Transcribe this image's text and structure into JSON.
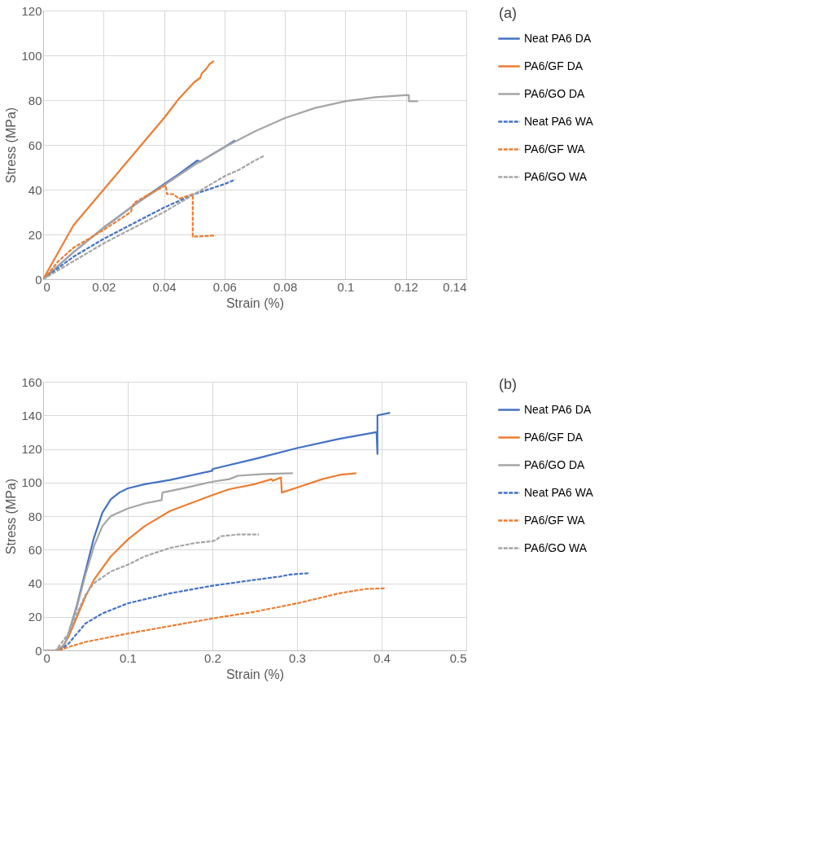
{
  "chart_data": [
    {
      "type": "line",
      "annotations": [
        "(a)"
      ],
      "xlabel": "Strain (%)",
      "ylabel": "Stress (MPa)",
      "xlim": [
        0,
        0.14
      ],
      "ylim": [
        0,
        120
      ],
      "xticks": [
        0,
        0.02,
        0.04,
        0.06,
        0.08,
        0.1,
        0.12,
        0.14
      ],
      "yticks": [
        0,
        20,
        40,
        60,
        80,
        100,
        120
      ],
      "grid": true,
      "legend": "right",
      "series": [
        {
          "name": "Neat PA6 DA",
          "color": "#4472c4",
          "line_style": "solid",
          "x": [
            0,
            0.01,
            0.02,
            0.03,
            0.04,
            0.045,
            0.05,
            0.051,
            0.052,
            0.055,
            0.06,
            0.0635
          ],
          "values": [
            0,
            12,
            23,
            33,
            42.5,
            47,
            52,
            53,
            52.5,
            55,
            59,
            62
          ]
        },
        {
          "name": "PA6/GF DA",
          "color": "#ed7d31",
          "line_style": "solid",
          "x": [
            0,
            0.005,
            0.01,
            0.015,
            0.02,
            0.03,
            0.04,
            0.044,
            0.0445,
            0.05,
            0.052,
            0.0525,
            0.054,
            0.055,
            0.0565
          ],
          "values": [
            0,
            12,
            24,
            32,
            40,
            56,
            72,
            79,
            80,
            88,
            90,
            92,
            94,
            96,
            97.5
          ]
        },
        {
          "name": "PA6/GO DA",
          "color": "#a5a5a5",
          "line_style": "solid",
          "x": [
            0,
            0.01,
            0.02,
            0.03,
            0.04,
            0.05,
            0.06,
            0.07,
            0.08,
            0.09,
            0.1,
            0.11,
            0.12,
            0.121,
            0.121,
            0.124
          ],
          "values": [
            0,
            12,
            23,
            33,
            42,
            51,
            59,
            66,
            72,
            76.5,
            79.5,
            81.3,
            82.2,
            82.2,
            79.5,
            79.5
          ]
        },
        {
          "name": "Neat PA6 WA",
          "color": "#4472c4",
          "line_style": "dashed",
          "x": [
            0,
            0.01,
            0.02,
            0.03,
            0.04,
            0.05,
            0.06,
            0.0635
          ],
          "values": [
            0,
            10,
            18,
            25,
            32,
            38,
            42.5,
            44.5
          ]
        },
        {
          "name": "PA6/GF WA",
          "color": "#ed7d31",
          "line_style": "dashed",
          "x": [
            0,
            0.002,
            0.005,
            0.01,
            0.02,
            0.029,
            0.03,
            0.035,
            0.04,
            0.0405,
            0.041,
            0.043,
            0.045,
            0.0495,
            0.0495,
            0.057
          ],
          "values": [
            0,
            3,
            8,
            14,
            22,
            30,
            34,
            38,
            41.5,
            42,
            38,
            38,
            36,
            38,
            19,
            19.5
          ]
        },
        {
          "name": "PA6/GO WA",
          "color": "#a5a5a5",
          "line_style": "dashed",
          "x": [
            0,
            0.01,
            0.02,
            0.03,
            0.04,
            0.05,
            0.06,
            0.065,
            0.07,
            0.073
          ],
          "values": [
            0,
            8,
            16,
            23,
            30,
            38,
            46,
            49,
            53,
            55
          ]
        }
      ]
    },
    {
      "type": "line",
      "annotations": [
        "(b)"
      ],
      "xlabel": "Strain (%)",
      "ylabel": "Stress (MPa)",
      "xlim": [
        0,
        0.5
      ],
      "ylim": [
        0,
        160
      ],
      "xticks": [
        0,
        0.1,
        0.2,
        0.3,
        0.4,
        0.5
      ],
      "yticks": [
        0,
        20,
        40,
        60,
        80,
        100,
        120,
        140,
        160
      ],
      "grid": true,
      "legend": "right",
      "series": [
        {
          "name": "Neat PA6 DA",
          "color": "#4472c4",
          "line_style": "solid",
          "x": [
            0,
            0.015,
            0.025,
            0.03,
            0.04,
            0.05,
            0.06,
            0.07,
            0.08,
            0.09,
            0.1,
            0.12,
            0.15,
            0.2,
            0.2,
            0.25,
            0.3,
            0.35,
            0.394,
            0.395,
            0.395,
            0.41
          ],
          "values": [
            0,
            0,
            3,
            10,
            27,
            47,
            67,
            82,
            90,
            94,
            96.5,
            99,
            101.5,
            107,
            108,
            114,
            120.5,
            126,
            130,
            117,
            140,
            141.5
          ]
        },
        {
          "name": "PA6/GF DA",
          "color": "#ed7d31",
          "line_style": "solid",
          "x": [
            0,
            0.02,
            0.03,
            0.04,
            0.05,
            0.06,
            0.08,
            0.1,
            0.12,
            0.15,
            0.2,
            0.22,
            0.25,
            0.27,
            0.271,
            0.281,
            0.282,
            0.3,
            0.33,
            0.35,
            0.37
          ],
          "values": [
            0,
            0,
            8,
            20,
            32,
            42,
            56,
            66,
            74,
            83,
            92.5,
            96,
            99,
            102,
            101,
            103,
            94,
            97,
            102,
            104.5,
            105.5
          ]
        },
        {
          "name": "PA6/GO DA",
          "color": "#a5a5a5",
          "line_style": "solid",
          "x": [
            0,
            0.015,
            0.025,
            0.03,
            0.04,
            0.05,
            0.06,
            0.07,
            0.08,
            0.1,
            0.12,
            0.14,
            0.141,
            0.17,
            0.2,
            0.22,
            0.23,
            0.26,
            0.295
          ],
          "values": [
            0,
            0,
            3,
            10,
            26,
            45,
            62,
            74,
            80,
            84.5,
            87.5,
            89.5,
            94,
            97,
            100.5,
            102,
            104,
            105,
            105.5
          ]
        },
        {
          "name": "Neat PA6 WA",
          "color": "#4472c4",
          "line_style": "dashed",
          "x": [
            0,
            0.02,
            0.03,
            0.04,
            0.05,
            0.07,
            0.1,
            0.15,
            0.2,
            0.25,
            0.28,
            0.29,
            0.3,
            0.315
          ],
          "values": [
            0,
            0,
            4,
            10,
            16,
            22,
            28,
            34,
            38.5,
            42,
            44,
            45,
            45.5,
            46
          ]
        },
        {
          "name": "PA6/GF WA",
          "color": "#ed7d31",
          "line_style": "dashed",
          "x": [
            0,
            0.02,
            0.03,
            0.05,
            0.1,
            0.15,
            0.2,
            0.25,
            0.3,
            0.35,
            0.38,
            0.405
          ],
          "values": [
            0,
            0,
            2,
            5,
            10,
            14.5,
            19,
            23,
            28,
            34,
            36.5,
            37
          ]
        },
        {
          "name": "PA6/GO WA",
          "color": "#a5a5a5",
          "line_style": "dashed",
          "x": [
            0,
            0.015,
            0.03,
            0.04,
            0.05,
            0.06,
            0.08,
            0.1,
            0.12,
            0.15,
            0.18,
            0.2,
            0.205,
            0.21,
            0.23,
            0.255
          ],
          "values": [
            0,
            0,
            10,
            22,
            33,
            40,
            47,
            51,
            56,
            61,
            64,
            65,
            66,
            68,
            69,
            69
          ]
        }
      ]
    }
  ]
}
